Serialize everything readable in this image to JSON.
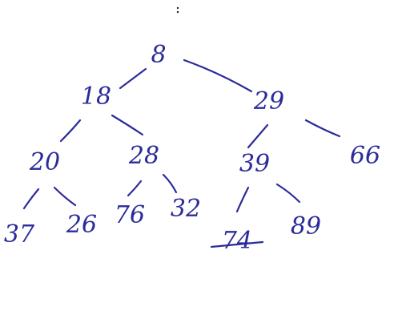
{
  "colors": {
    "ink": "#2b2b9a",
    "background": "#ffffff",
    "mark": "#222222"
  },
  "tree": {
    "nodes": [
      {
        "id": "n8",
        "label": "8"
      },
      {
        "id": "n18",
        "label": "18"
      },
      {
        "id": "n29",
        "label": "29"
      },
      {
        "id": "n20",
        "label": "20"
      },
      {
        "id": "n28",
        "label": "28"
      },
      {
        "id": "n39",
        "label": "39"
      },
      {
        "id": "n66",
        "label": "66"
      },
      {
        "id": "n37",
        "label": "37"
      },
      {
        "id": "n26",
        "label": "26"
      },
      {
        "id": "n76",
        "label": "76"
      },
      {
        "id": "n32",
        "label": "32"
      },
      {
        "id": "n74",
        "label": "74"
      },
      {
        "id": "n89",
        "label": "89"
      }
    ],
    "edges": [
      {
        "from": "n8",
        "to": "n18"
      },
      {
        "from": "n8",
        "to": "n29"
      },
      {
        "from": "n18",
        "to": "n20"
      },
      {
        "from": "n18",
        "to": "n28"
      },
      {
        "from": "n29",
        "to": "n39"
      },
      {
        "from": "n29",
        "to": "n66"
      },
      {
        "from": "n20",
        "to": "n37"
      },
      {
        "from": "n20",
        "to": "n26"
      },
      {
        "from": "n28",
        "to": "n76"
      },
      {
        "from": "n28",
        "to": "n32"
      },
      {
        "from": "n39",
        "to": "n74"
      },
      {
        "from": "n39",
        "to": "n89"
      }
    ]
  }
}
